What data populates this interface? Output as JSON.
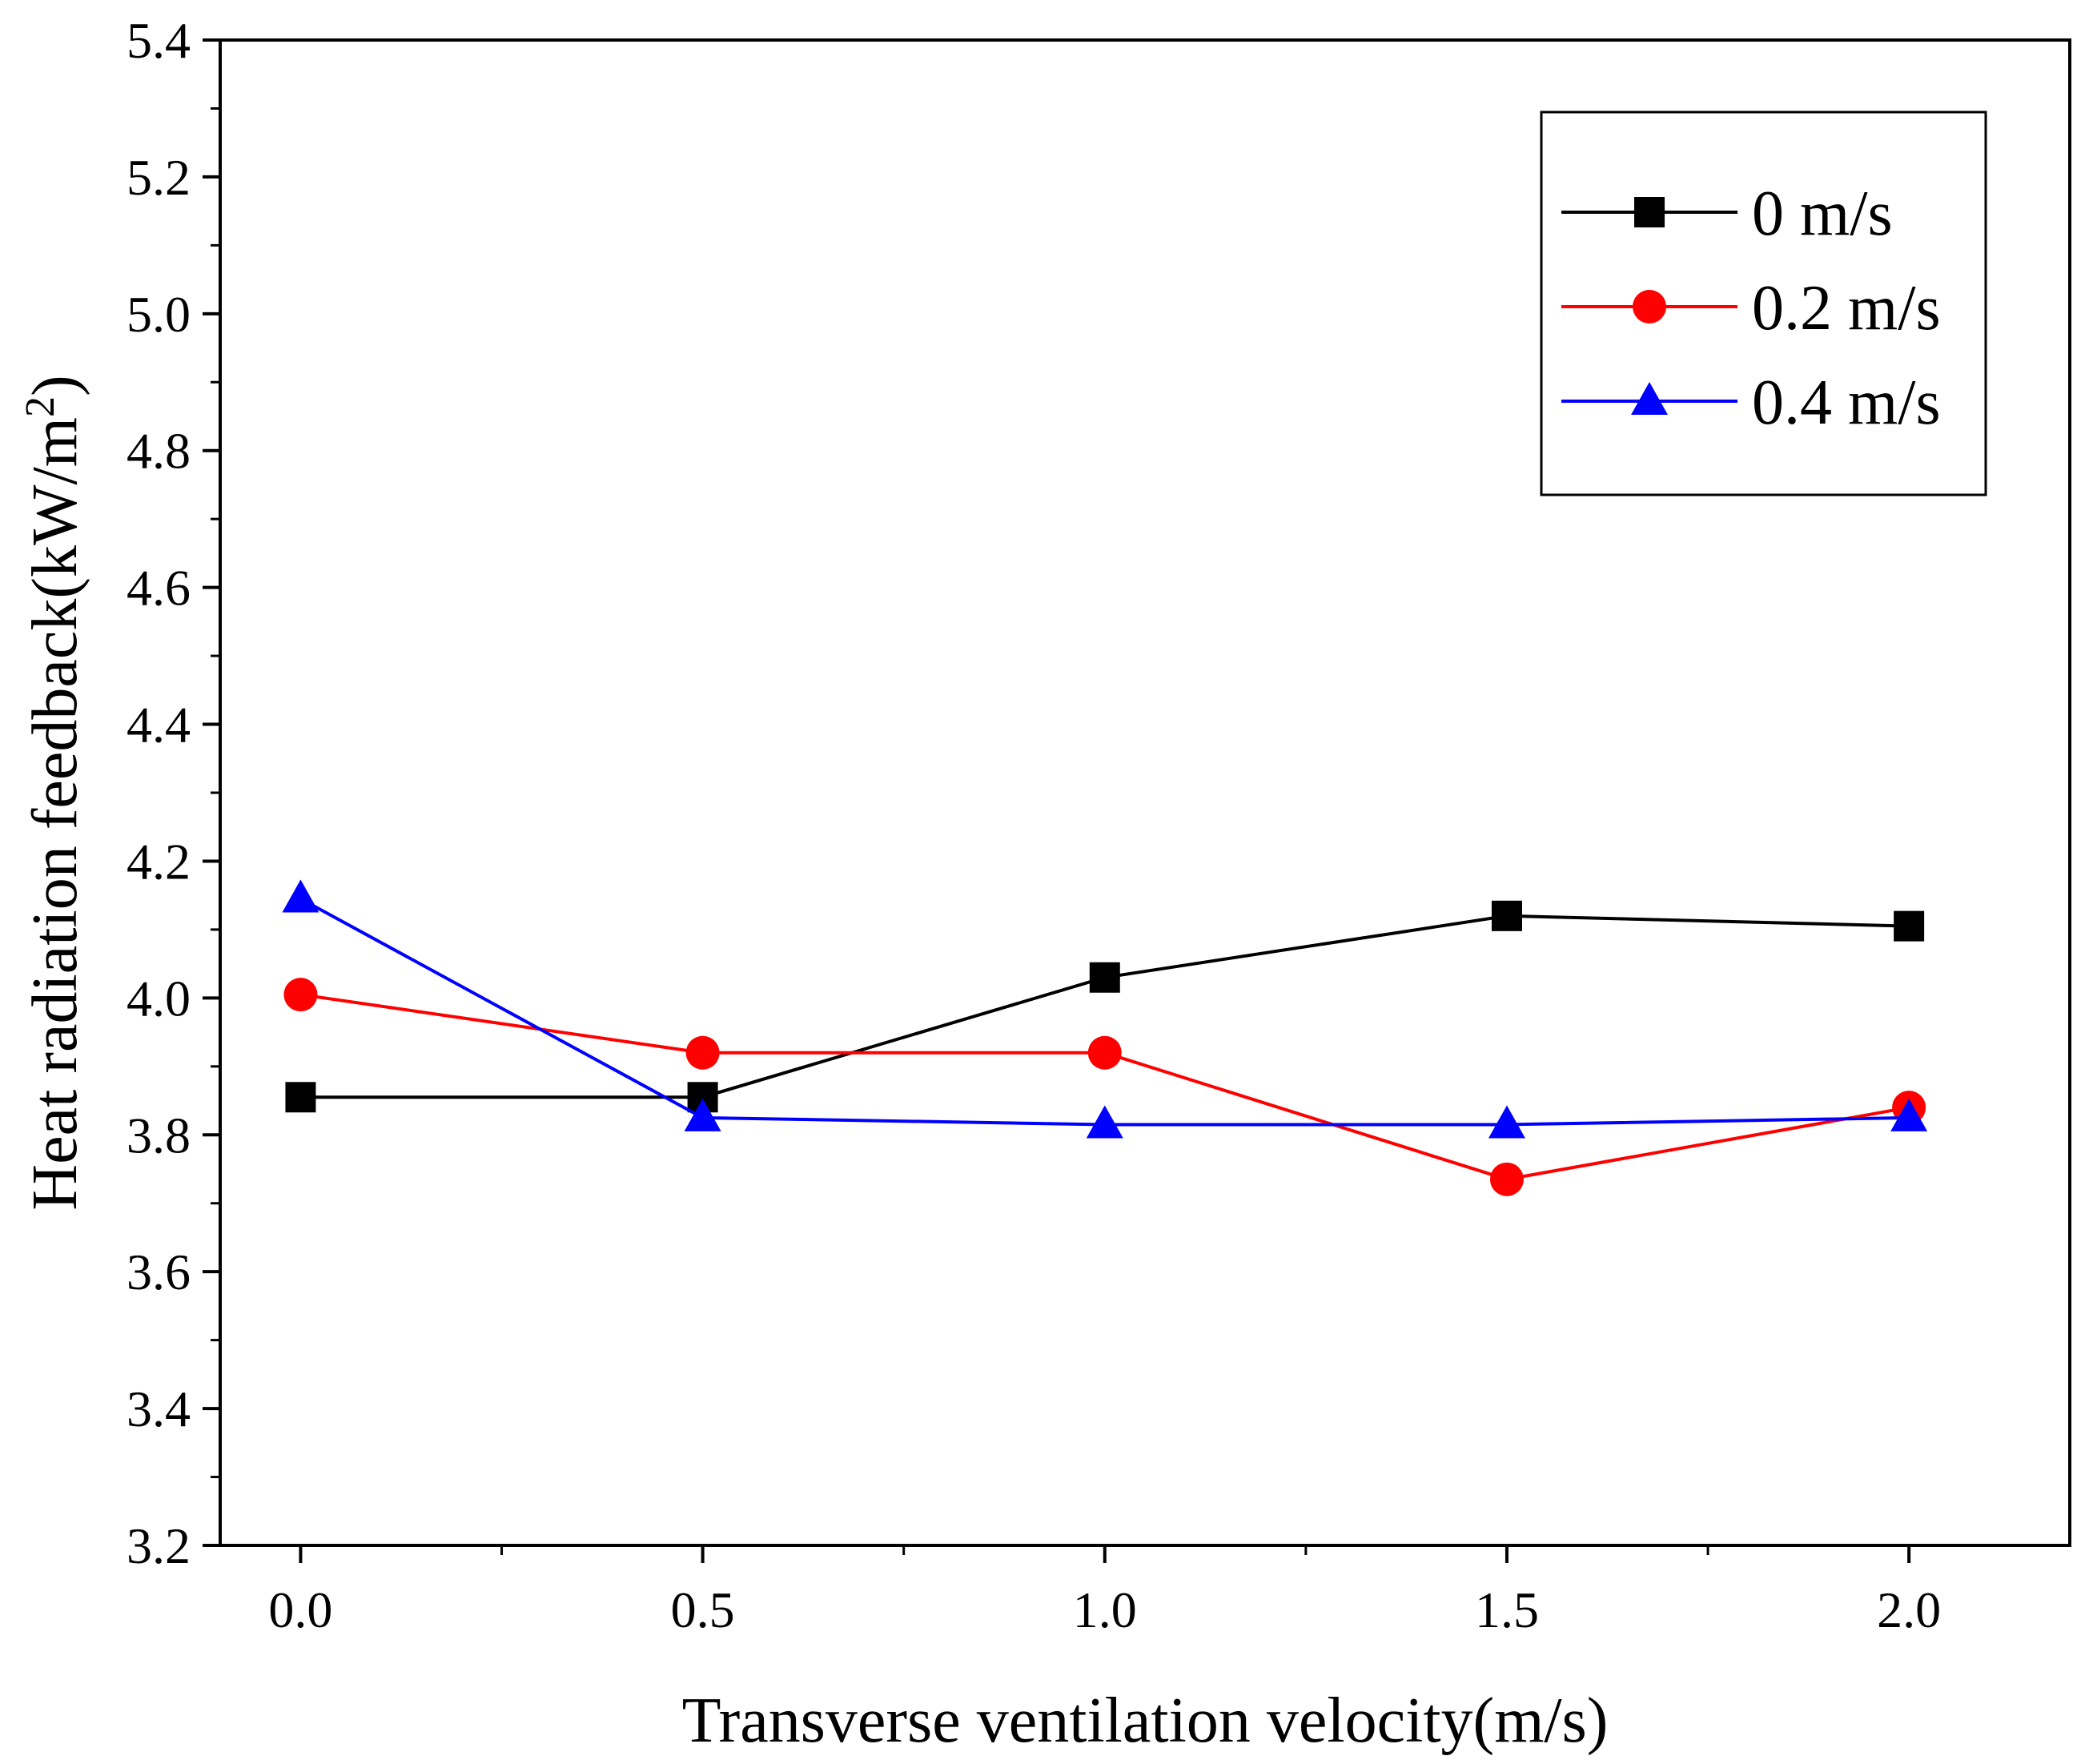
{
  "chart_data": {
    "type": "line",
    "x": [
      0.0,
      0.5,
      1.0,
      1.5,
      2.0
    ],
    "series": [
      {
        "name": "0 m/s",
        "color": "#000000",
        "marker": "square",
        "values": [
          3.855,
          3.855,
          4.03,
          4.12,
          4.105
        ]
      },
      {
        "name": "0.2 m/s",
        "color": "#ff0000",
        "marker": "circle",
        "values": [
          4.005,
          3.92,
          3.92,
          3.735,
          3.84
        ]
      },
      {
        "name": "0.4 m/s",
        "color": "#0000ff",
        "marker": "triangle",
        "values": [
          4.145,
          3.825,
          3.815,
          3.815,
          3.825
        ]
      }
    ],
    "xlabel": "Transverse ventilation velocity(m/s)",
    "ylabel_main": "Heat radiation feedback(kW/m",
    "ylabel_sup": "2",
    "ylabel_close": ")",
    "xlim": [
      -0.1,
      2.2
    ],
    "ylim": [
      3.2,
      5.4
    ],
    "xticks": [
      "0.0",
      "0.5",
      "1.0",
      "1.5",
      "2.0"
    ],
    "yticks": [
      "3.2",
      "3.4",
      "3.6",
      "3.8",
      "4.0",
      "4.2",
      "4.4",
      "4.6",
      "4.8",
      "5.0",
      "5.2",
      "5.4"
    ],
    "legend_position": "top-right",
    "grid": false
  }
}
